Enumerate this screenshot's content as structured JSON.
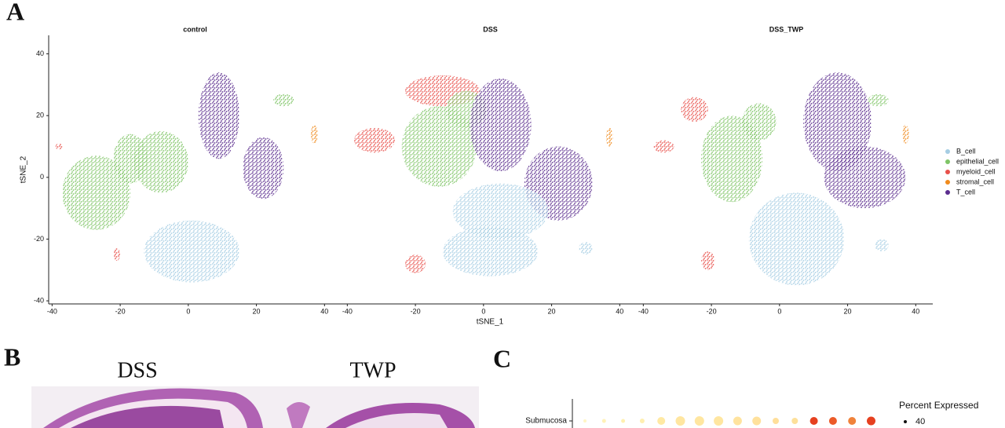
{
  "panel_labels": [
    "A",
    "B",
    "C"
  ],
  "panel_a": {
    "type": "scatter",
    "panels": [
      {
        "title": "control"
      },
      {
        "title": "DSS"
      },
      {
        "title": "DSS_TWP"
      }
    ],
    "x_label": "tSNE_1",
    "y_label": "tSNE_2",
    "xlim": [
      -41,
      45
    ],
    "ylim": [
      -41,
      46
    ],
    "xticks": [
      -40,
      -20,
      0,
      20,
      40
    ],
    "yticks": [
      -40,
      -20,
      0,
      20,
      40
    ],
    "legend": {
      "position": "right",
      "series": [
        {
          "name": "B_cell",
          "color": "#a6cde3"
        },
        {
          "name": "epithelial_cell",
          "color": "#7fc466"
        },
        {
          "name": "myeloid_cell",
          "color": "#e8504a"
        },
        {
          "name": "stromal_cell",
          "color": "#f08a1c"
        },
        {
          "name": "T_cell",
          "color": "#5b2d8e"
        }
      ]
    }
  },
  "panel_b": {
    "labels": [
      "DSS",
      "TWP"
    ]
  },
  "panel_c": {
    "row_label": "Submucosa",
    "legend_title": "Percent Expressed",
    "legend_values": [
      40
    ]
  }
}
